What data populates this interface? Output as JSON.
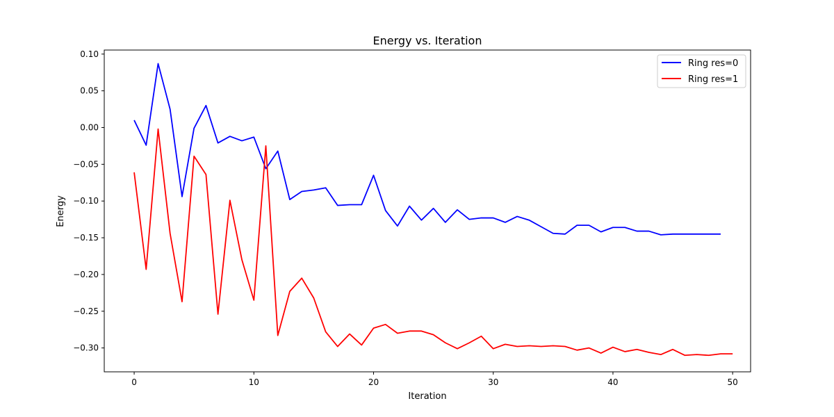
{
  "chart_data": {
    "type": "line",
    "title": "Energy vs. Iteration",
    "xlabel": "Iteration",
    "ylabel": "Energy",
    "xlim": [
      -2.5,
      51.5
    ],
    "ylim": [
      -0.3325,
      0.1055
    ],
    "xticks": [
      0,
      10,
      20,
      30,
      40,
      50
    ],
    "xtick_labels": [
      "0",
      "10",
      "20",
      "30",
      "40",
      "50"
    ],
    "yticks": [
      0.1,
      0.05,
      0.0,
      -0.05,
      -0.1,
      -0.15,
      -0.2,
      -0.25,
      -0.3
    ],
    "ytick_labels": [
      "0.10",
      "0.05",
      "0.00",
      "−0.05",
      "−0.10",
      "−0.15",
      "−0.20",
      "−0.25",
      "−0.30"
    ],
    "grid": false,
    "legend_position": "top-right",
    "series": [
      {
        "name": "Ring res=0",
        "color": "#0000ff",
        "x": [
          0,
          1,
          2,
          3,
          4,
          5,
          6,
          7,
          8,
          9,
          10,
          11,
          12,
          13,
          14,
          15,
          16,
          17,
          18,
          19,
          20,
          21,
          22,
          23,
          24,
          25,
          26,
          27,
          28,
          29,
          30,
          31,
          32,
          33,
          34,
          35,
          36,
          37,
          38,
          39,
          40,
          41,
          42,
          43,
          44,
          45,
          46,
          47,
          48,
          49
        ],
        "values": [
          0.01,
          -0.024,
          0.087,
          0.025,
          -0.094,
          -0.001,
          0.03,
          -0.021,
          -0.012,
          -0.018,
          -0.013,
          -0.056,
          -0.032,
          -0.098,
          -0.087,
          -0.085,
          -0.082,
          -0.106,
          -0.105,
          -0.105,
          -0.065,
          -0.113,
          -0.134,
          -0.107,
          -0.126,
          -0.11,
          -0.129,
          -0.112,
          -0.125,
          -0.123,
          -0.123,
          -0.129,
          -0.121,
          -0.126,
          -0.135,
          -0.144,
          -0.145,
          -0.133,
          -0.133,
          -0.142,
          -0.136,
          -0.136,
          -0.141,
          -0.141,
          -0.146,
          -0.145,
          -0.145,
          -0.145,
          -0.145,
          -0.145
        ]
      },
      {
        "name": "Ring res=1",
        "color": "#ff0000",
        "x": [
          0,
          1,
          2,
          3,
          4,
          5,
          6,
          7,
          8,
          9,
          10,
          11,
          12,
          13,
          14,
          15,
          16,
          17,
          18,
          19,
          20,
          21,
          22,
          23,
          24,
          25,
          26,
          27,
          28,
          29,
          30,
          31,
          32,
          33,
          34,
          35,
          36,
          37,
          38,
          39,
          40,
          41,
          42,
          43,
          44,
          45,
          46,
          47,
          48,
          49,
          50
        ],
        "values": [
          -0.061,
          -0.193,
          -0.002,
          -0.144,
          -0.237,
          -0.039,
          -0.064,
          -0.254,
          -0.099,
          -0.18,
          -0.235,
          -0.025,
          -0.283,
          -0.223,
          -0.205,
          -0.232,
          -0.278,
          -0.298,
          -0.281,
          -0.296,
          -0.273,
          -0.268,
          -0.28,
          -0.277,
          -0.277,
          -0.282,
          -0.293,
          -0.301,
          -0.293,
          -0.284,
          -0.301,
          -0.295,
          -0.298,
          -0.297,
          -0.298,
          -0.297,
          -0.298,
          -0.303,
          -0.3,
          -0.307,
          -0.299,
          -0.305,
          -0.302,
          -0.306,
          -0.309,
          -0.302,
          -0.31,
          -0.309,
          -0.31,
          -0.308,
          -0.308
        ]
      }
    ]
  }
}
